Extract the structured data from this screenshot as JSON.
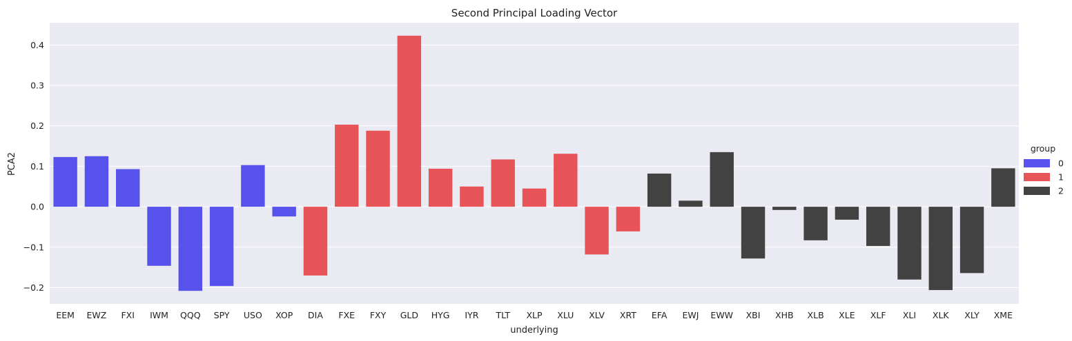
{
  "chart_data": {
    "type": "bar",
    "title": "Second Principal Loading Vector",
    "xlabel": "underlying",
    "ylabel": "PCA2",
    "ylim": [
      -0.24,
      0.455
    ],
    "yticks": [
      -0.2,
      -0.1,
      0.0,
      0.1,
      0.2,
      0.3,
      0.4
    ],
    "ytick_labels": [
      "−0.2",
      "−0.1",
      "0.0",
      "0.1",
      "0.2",
      "0.3",
      "0.4"
    ],
    "grid": true,
    "categories": [
      "EEM",
      "EWZ",
      "FXI",
      "IWM",
      "QQQ",
      "SPY",
      "USO",
      "XOP",
      "DIA",
      "FXE",
      "FXY",
      "GLD",
      "HYG",
      "IYR",
      "TLT",
      "XLP",
      "XLU",
      "XLV",
      "XRT",
      "EFA",
      "EWJ",
      "EWW",
      "XBI",
      "XHB",
      "XLB",
      "XLE",
      "XLF",
      "XLI",
      "XLK",
      "XLY",
      "XME"
    ],
    "values": [
      0.123,
      0.125,
      0.093,
      -0.146,
      -0.208,
      -0.196,
      0.103,
      -0.024,
      -0.17,
      0.203,
      0.188,
      0.423,
      0.094,
      0.05,
      0.117,
      0.045,
      0.131,
      -0.118,
      -0.061,
      0.082,
      0.015,
      0.135,
      -0.128,
      -0.008,
      -0.083,
      -0.032,
      -0.097,
      -0.18,
      -0.206,
      -0.164,
      0.095
    ],
    "groups": [
      "0",
      "0",
      "0",
      "0",
      "0",
      "0",
      "0",
      "0",
      "1",
      "1",
      "1",
      "1",
      "1",
      "1",
      "1",
      "1",
      "1",
      "1",
      "1",
      "2",
      "2",
      "2",
      "2",
      "2",
      "2",
      "2",
      "2",
      "2",
      "2",
      "2",
      "2"
    ],
    "legend": {
      "title": "group",
      "placement": "right",
      "entries": [
        {
          "label": "0",
          "color": "#4a44ea"
        },
        {
          "label": "1",
          "color": "#e6464b"
        },
        {
          "label": "2",
          "color": "#333333"
        }
      ]
    },
    "colors": {
      "background": "#eaeaf2",
      "grid": "#ffffff"
    }
  }
}
